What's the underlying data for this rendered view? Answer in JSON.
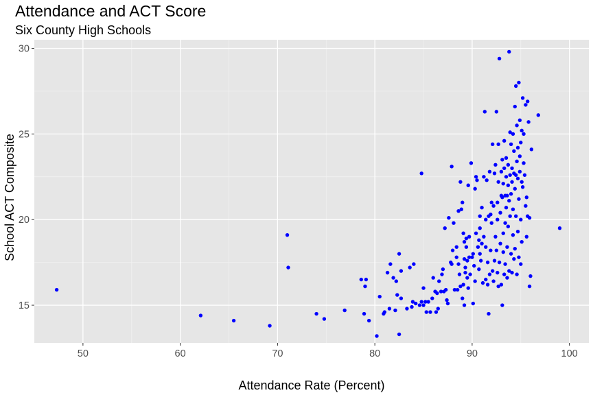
{
  "chart_data": {
    "type": "scatter",
    "title": "Attendance and ACT Score",
    "subtitle": "Six County High Schools",
    "xlabel": "Attendance Rate (Percent)",
    "ylabel": "School ACT Composite",
    "xlim": [
      45,
      102
    ],
    "ylim": [
      12.8,
      30.5
    ],
    "x_ticks": [
      50,
      60,
      70,
      80,
      90,
      100
    ],
    "y_ticks": [
      15,
      20,
      25,
      30
    ],
    "x_tick_labels": [
      "50",
      "60",
      "70",
      "80",
      "90",
      "100"
    ],
    "y_tick_labels": [
      "15",
      "20",
      "25",
      "30"
    ],
    "grid": true,
    "point_color": "#0000ff",
    "panel_color": "#e6e6e6",
    "points": [
      [
        47.3,
        15.9
      ],
      [
        62.1,
        14.4
      ],
      [
        65.5,
        14.1
      ],
      [
        69.2,
        13.8
      ],
      [
        71.0,
        19.1
      ],
      [
        71.1,
        17.2
      ],
      [
        74.0,
        14.5
      ],
      [
        74.8,
        14.2
      ],
      [
        76.9,
        14.7
      ],
      [
        78.6,
        16.5
      ],
      [
        78.9,
        14.5
      ],
      [
        79.0,
        16.1
      ],
      [
        79.1,
        16.5
      ],
      [
        79.4,
        14.1
      ],
      [
        80.2,
        13.2
      ],
      [
        80.5,
        15.5
      ],
      [
        80.9,
        14.5
      ],
      [
        81.0,
        14.6
      ],
      [
        81.3,
        16.9
      ],
      [
        81.5,
        14.8
      ],
      [
        81.6,
        17.4
      ],
      [
        81.9,
        16.6
      ],
      [
        82.1,
        14.7
      ],
      [
        82.2,
        16.4
      ],
      [
        82.3,
        15.6
      ],
      [
        82.5,
        18.0
      ],
      [
        82.5,
        13.3
      ],
      [
        82.7,
        15.4
      ],
      [
        82.7,
        17.0
      ],
      [
        83.3,
        14.8
      ],
      [
        83.6,
        17.2
      ],
      [
        83.8,
        14.9
      ],
      [
        83.9,
        15.2
      ],
      [
        84.0,
        17.4
      ],
      [
        84.2,
        15.1
      ],
      [
        84.6,
        15.0
      ],
      [
        84.8,
        15.2
      ],
      [
        84.8,
        22.7
      ],
      [
        85.0,
        16.0
      ],
      [
        85.0,
        15.0
      ],
      [
        85.2,
        15.2
      ],
      [
        85.3,
        14.6
      ],
      [
        85.5,
        15.2
      ],
      [
        85.7,
        14.6
      ],
      [
        85.9,
        15.4
      ],
      [
        86.0,
        16.6
      ],
      [
        86.2,
        15.8
      ],
      [
        86.3,
        14.6
      ],
      [
        86.4,
        15.7
      ],
      [
        86.5,
        14.8
      ],
      [
        86.6,
        16.4
      ],
      [
        86.8,
        15.8
      ],
      [
        86.9,
        16.8
      ],
      [
        87.0,
        17.1
      ],
      [
        87.1,
        15.8
      ],
      [
        87.2,
        19.5
      ],
      [
        87.3,
        15.9
      ],
      [
        87.4,
        15.3
      ],
      [
        87.5,
        15.1
      ],
      [
        87.6,
        20.1
      ],
      [
        87.8,
        17.5
      ],
      [
        87.9,
        23.1
      ],
      [
        87.9,
        17.4
      ],
      [
        88.0,
        18.2
      ],
      [
        88.1,
        19.8
      ],
      [
        88.2,
        15.9
      ],
      [
        88.4,
        17.8
      ],
      [
        88.4,
        18.4
      ],
      [
        88.5,
        15.9
      ],
      [
        88.6,
        17.4
      ],
      [
        88.6,
        20.5
      ],
      [
        88.7,
        16.8
      ],
      [
        88.8,
        22.2
      ],
      [
        88.8,
        16.1
      ],
      [
        88.9,
        20.6
      ],
      [
        89.0,
        15.4
      ],
      [
        89.0,
        21.0
      ],
      [
        89.1,
        19.2
      ],
      [
        89.1,
        16.2
      ],
      [
        89.2,
        18.7
      ],
      [
        89.2,
        17.7
      ],
      [
        89.2,
        15.0
      ],
      [
        89.3,
        16.9
      ],
      [
        89.3,
        17.2
      ],
      [
        89.4,
        18.4
      ],
      [
        89.4,
        18.9
      ],
      [
        89.5,
        16.6
      ],
      [
        89.5,
        17.6
      ],
      [
        89.6,
        16.0
      ],
      [
        89.6,
        22.0
      ],
      [
        89.7,
        19.0
      ],
      [
        89.7,
        17.8
      ],
      [
        89.8,
        16.8
      ],
      [
        89.9,
        23.3
      ],
      [
        90.0,
        17.8
      ],
      [
        90.1,
        15.1
      ],
      [
        90.1,
        18.0
      ],
      [
        90.2,
        17.3
      ],
      [
        90.3,
        21.8
      ],
      [
        90.3,
        16.4
      ],
      [
        90.4,
        22.5
      ],
      [
        90.4,
        19.2
      ],
      [
        90.5,
        22.3
      ],
      [
        90.6,
        18.4
      ],
      [
        90.7,
        17.1
      ],
      [
        90.7,
        18.8
      ],
      [
        90.8,
        18.0
      ],
      [
        90.8,
        19.5
      ],
      [
        90.8,
        20.2
      ],
      [
        90.9,
        17.6
      ],
      [
        91.0,
        18.6
      ],
      [
        91.0,
        20.7
      ],
      [
        91.1,
        16.3
      ],
      [
        91.2,
        19.0
      ],
      [
        91.2,
        22.5
      ],
      [
        91.3,
        26.3
      ],
      [
        91.4,
        16.5
      ],
      [
        91.4,
        18.4
      ],
      [
        91.4,
        20.0
      ],
      [
        91.5,
        22.3
      ],
      [
        91.6,
        16.2
      ],
      [
        91.6,
        17.5
      ],
      [
        91.7,
        20.2
      ],
      [
        91.7,
        14.5
      ],
      [
        91.8,
        16.8
      ],
      [
        91.8,
        22.8
      ],
      [
        91.9,
        20.3
      ],
      [
        91.9,
        18.2
      ],
      [
        92.0,
        19.8
      ],
      [
        92.0,
        21.0
      ],
      [
        92.1,
        17.0
      ],
      [
        92.1,
        24.4
      ],
      [
        92.2,
        20.8
      ],
      [
        92.2,
        16.4
      ],
      [
        92.3,
        17.6
      ],
      [
        92.3,
        22.7
      ],
      [
        92.4,
        19.0
      ],
      [
        92.4,
        23.2
      ],
      [
        92.5,
        18.2
      ],
      [
        92.5,
        26.3
      ],
      [
        92.6,
        16.9
      ],
      [
        92.6,
        20.0
      ],
      [
        92.6,
        21.0
      ],
      [
        92.7,
        16.1
      ],
      [
        92.7,
        22.2
      ],
      [
        92.7,
        24.4
      ],
      [
        92.8,
        29.4
      ],
      [
        92.8,
        17.5
      ],
      [
        92.9,
        18.6
      ],
      [
        92.9,
        20.4
      ],
      [
        93.0,
        21.4
      ],
      [
        93.0,
        16.2
      ],
      [
        93.0,
        22.8
      ],
      [
        93.1,
        21.3
      ],
      [
        93.1,
        23.5
      ],
      [
        93.1,
        15.0
      ],
      [
        93.2,
        19.2
      ],
      [
        93.2,
        22.1
      ],
      [
        93.2,
        18.1
      ],
      [
        93.3,
        24.6
      ],
      [
        93.3,
        16.8
      ],
      [
        93.3,
        23.0
      ],
      [
        93.4,
        21.4
      ],
      [
        93.4,
        17.4
      ],
      [
        93.4,
        19.8
      ],
      [
        93.5,
        22.5
      ],
      [
        93.5,
        23.6
      ],
      [
        93.5,
        20.7
      ],
      [
        93.6,
        21.4
      ],
      [
        93.6,
        16.6
      ],
      [
        93.6,
        18.4
      ],
      [
        93.7,
        22.0
      ],
      [
        93.7,
        23.2
      ],
      [
        93.7,
        19.6
      ],
      [
        93.8,
        29.8
      ],
      [
        93.8,
        17.0
      ],
      [
        93.8,
        21.1
      ],
      [
        93.9,
        22.6
      ],
      [
        93.9,
        25.1
      ],
      [
        93.9,
        20.2
      ],
      [
        94.0,
        24.4
      ],
      [
        94.0,
        18.0
      ],
      [
        94.0,
        21.5
      ],
      [
        94.1,
        22.2
      ],
      [
        94.1,
        16.9
      ],
      [
        94.1,
        23.0
      ],
      [
        94.2,
        25.0
      ],
      [
        94.2,
        20.6
      ],
      [
        94.2,
        19.1
      ],
      [
        94.3,
        22.7
      ],
      [
        94.3,
        17.7
      ],
      [
        94.3,
        24.0
      ],
      [
        94.4,
        26.6
      ],
      [
        94.4,
        21.8
      ],
      [
        94.4,
        18.3
      ],
      [
        94.5,
        27.8
      ],
      [
        94.5,
        22.6
      ],
      [
        94.5,
        20.2
      ],
      [
        94.6,
        23.4
      ],
      [
        94.6,
        25.5
      ],
      [
        94.6,
        16.8
      ],
      [
        94.7,
        22.4
      ],
      [
        94.7,
        24.2
      ],
      [
        94.7,
        19.3
      ],
      [
        94.8,
        28.0
      ],
      [
        94.8,
        21.2
      ],
      [
        94.8,
        17.8
      ],
      [
        94.9,
        25.8
      ],
      [
        94.9,
        22.8
      ],
      [
        94.9,
        23.7
      ],
      [
        95.0,
        20.0
      ],
      [
        95.0,
        24.5
      ],
      [
        95.0,
        17.4
      ],
      [
        95.1,
        22.2
      ],
      [
        95.1,
        18.7
      ],
      [
        95.1,
        25.2
      ],
      [
        95.2,
        27.1
      ],
      [
        95.2,
        21.9
      ],
      [
        95.3,
        23.3
      ],
      [
        95.3,
        25.0
      ],
      [
        95.4,
        22.6
      ],
      [
        95.5,
        20.8
      ],
      [
        95.5,
        26.7
      ],
      [
        95.6,
        21.3
      ],
      [
        95.6,
        19.0
      ],
      [
        95.7,
        20.2
      ],
      [
        95.7,
        26.9
      ],
      [
        95.8,
        25.7
      ],
      [
        95.9,
        16.1
      ],
      [
        95.9,
        20.1
      ],
      [
        96.0,
        16.7
      ],
      [
        96.1,
        24.1
      ],
      [
        96.8,
        26.1
      ],
      [
        99.0,
        19.5
      ]
    ]
  }
}
